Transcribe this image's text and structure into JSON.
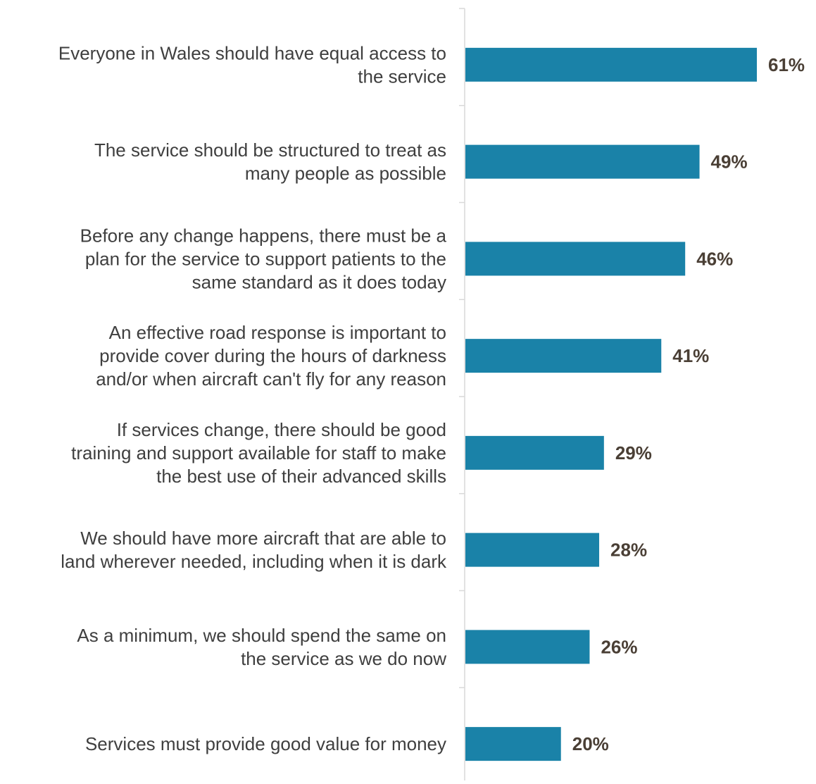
{
  "chart_data": {
    "type": "bar",
    "orientation": "horizontal",
    "title": "",
    "xlabel": "",
    "ylabel": "",
    "xlim": [
      0,
      61
    ],
    "grid": false,
    "value_suffix": "%",
    "bar_color": "#1A82A8",
    "label_color": "#4A3F35",
    "category_color": "#3F3F3F",
    "axis_color": "#D9D9D9",
    "categories": [
      [
        "Everyone in Wales should have equal access to",
        "the service"
      ],
      [
        "The service should be structured to treat as",
        "many people as possible"
      ],
      [
        "Before any change happens, there must be a",
        "plan for the service to support patients to the",
        "same standard as it does today"
      ],
      [
        "An effective road response is important to",
        "provide cover during the hours of darkness",
        "and/or when aircraft can't fly for any reason"
      ],
      [
        "If services change, there should be good",
        "training and support available for staff to make",
        "the best use of their advanced skills"
      ],
      [
        "We should have more aircraft that are able to",
        "land wherever needed, including when it is dark"
      ],
      [
        "As a minimum, we should spend the same on",
        "the service as we do now"
      ],
      [
        "Services must provide good value for money"
      ]
    ],
    "values": [
      61,
      49,
      46,
      41,
      29,
      28,
      26,
      20
    ]
  }
}
